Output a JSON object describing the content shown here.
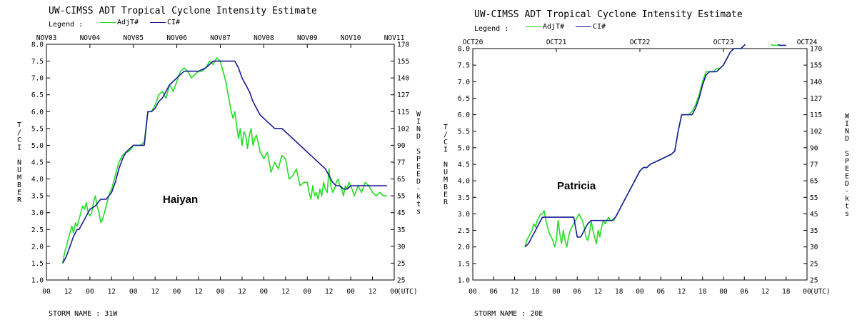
{
  "chart_data": [
    {
      "type": "line",
      "title": "UW-CIMSS ADT Tropical Cyclone Intensity Estimate",
      "legend_label": "Legend :",
      "legend": [
        {
          "name": "AdjT#",
          "color": "#22dd22"
        },
        {
          "name": "CI#",
          "color": "#1a1a9a"
        }
      ],
      "ylabel": "T/CI NUMBER",
      "y2label": "WIND SPEED-kts",
      "xlabel": "(UTC)",
      "storm_name": "STORM NAME : 31W",
      "annotation": "Haiyan",
      "x_top_labels": [
        "NOV03",
        "NOV04",
        "NOV05",
        "NOV06",
        "NOV07",
        "NOV08",
        "NOV09",
        "NOV10",
        "NOV11"
      ],
      "x_bottom_labels": [
        "00",
        "12",
        "00",
        "12",
        "00",
        "12",
        "00",
        "12",
        "00",
        "12",
        "00",
        "12",
        "00",
        "12",
        "00",
        "12",
        "00"
      ],
      "xlim_hours": [
        0,
        192
      ],
      "ylim": [
        1.0,
        8.0
      ],
      "y_ticks": [
        "1.0",
        "1.5",
        "2.0",
        "2.5",
        "3.0",
        "3.5",
        "4.0",
        "4.5",
        "5.0",
        "5.5",
        "6.0",
        "6.5",
        "7.0",
        "7.5",
        "8.0"
      ],
      "y2_ticks": [
        "25",
        "25",
        "30",
        "35",
        "45",
        "55",
        "65",
        "77",
        "90",
        "102",
        "115",
        "127",
        "140",
        "155",
        "170"
      ],
      "series": [
        {
          "name": "AdjT#",
          "color": "#22dd22",
          "x": [
            9,
            10,
            11,
            12,
            13,
            14,
            15,
            16,
            17,
            18,
            19,
            20,
            21,
            22,
            23,
            24,
            25,
            26,
            27,
            28,
            29,
            30,
            31,
            32,
            33,
            34,
            35,
            36,
            37,
            38,
            39,
            40,
            41,
            42,
            43,
            44,
            45,
            46,
            47,
            48,
            50,
            52,
            54,
            56,
            58,
            60,
            62,
            64,
            66,
            68,
            70,
            72,
            74,
            76,
            78,
            80,
            82,
            84,
            86,
            88,
            90,
            92,
            94,
            96,
            97,
            98,
            99,
            100,
            101,
            102,
            103,
            104,
            105,
            106,
            107,
            108,
            109,
            110,
            111,
            112,
            113,
            114,
            115,
            116,
            118,
            120,
            122,
            124,
            126,
            128,
            130,
            132,
            134,
            136,
            138,
            140,
            142,
            144,
            145,
            146,
            147,
            148,
            149,
            150,
            151,
            152,
            153,
            154,
            155,
            156,
            157,
            158,
            159,
            160,
            161,
            162,
            163,
            164,
            165,
            166,
            167,
            168,
            170,
            172,
            174,
            176,
            178,
            180,
            182,
            184,
            186,
            188
          ],
          "values": [
            1.5,
            1.8,
            2.0,
            2.2,
            2.4,
            2.6,
            2.4,
            2.7,
            2.6,
            2.8,
            3.0,
            3.2,
            3.1,
            3.3,
            3.0,
            2.9,
            3.0,
            3.3,
            3.5,
            3.2,
            3.0,
            2.7,
            2.8,
            3.0,
            3.2,
            3.4,
            3.6,
            3.7,
            3.9,
            4.1,
            4.3,
            4.5,
            4.6,
            4.7,
            4.75,
            4.8,
            4.8,
            4.85,
            4.9,
            5.0,
            5.0,
            5.0,
            5.1,
            6.0,
            6.0,
            6.2,
            6.5,
            6.6,
            6.4,
            6.8,
            6.6,
            6.9,
            7.2,
            7.3,
            7.2,
            7.0,
            7.1,
            7.2,
            7.2,
            7.3,
            7.5,
            7.4,
            7.6,
            7.5,
            7.3,
            7.1,
            6.9,
            6.6,
            6.3,
            6.0,
            5.8,
            6.0,
            5.6,
            5.2,
            5.5,
            5.0,
            5.4,
            5.3,
            4.9,
            5.3,
            5.5,
            5.0,
            5.2,
            5.3,
            4.8,
            4.6,
            4.8,
            4.2,
            4.5,
            4.3,
            4.7,
            4.6,
            4.0,
            4.1,
            4.3,
            3.8,
            3.9,
            3.9,
            3.6,
            3.4,
            3.8,
            3.5,
            3.6,
            3.4,
            3.7,
            3.5,
            3.9,
            3.7,
            3.6,
            4.3,
            3.8,
            3.6,
            3.7,
            3.9,
            4.0,
            3.8,
            3.7,
            3.5,
            3.8,
            3.7,
            3.9,
            3.8,
            3.5,
            3.8,
            3.6,
            3.9,
            3.8,
            3.6,
            3.5,
            3.6,
            3.5,
            3.5
          ]
        },
        {
          "name": "CI#",
          "color": "#1a1a9a",
          "x": [
            9,
            11,
            13,
            15,
            17,
            18,
            21,
            24,
            27,
            30,
            33,
            36,
            38,
            40,
            42,
            44,
            46,
            48,
            50,
            52,
            54,
            56,
            58,
            60,
            62,
            64,
            66,
            68,
            70,
            72,
            74,
            76,
            78,
            80,
            84,
            88,
            92,
            96,
            100,
            104,
            106,
            108,
            110,
            112,
            114,
            116,
            118,
            120,
            122,
            124,
            126,
            128,
            130,
            132,
            134,
            136,
            138,
            140,
            142,
            144,
            146,
            148,
            150,
            152,
            154,
            156,
            158,
            160,
            162,
            164,
            166,
            168,
            170,
            172,
            174,
            176,
            178,
            180,
            182,
            184,
            186,
            188
          ],
          "values": [
            1.5,
            1.7,
            2.0,
            2.3,
            2.5,
            2.5,
            2.8,
            3.1,
            3.2,
            3.4,
            3.4,
            3.6,
            3.9,
            4.3,
            4.6,
            4.8,
            4.9,
            5.0,
            5.0,
            5.0,
            5.0,
            6.0,
            6.0,
            6.1,
            6.3,
            6.4,
            6.6,
            6.8,
            6.9,
            7.0,
            7.1,
            7.2,
            7.2,
            7.2,
            7.2,
            7.3,
            7.5,
            7.5,
            7.5,
            7.5,
            7.3,
            7.0,
            6.8,
            6.6,
            6.3,
            6.1,
            5.9,
            5.8,
            5.7,
            5.6,
            5.5,
            5.5,
            5.5,
            5.4,
            5.3,
            5.2,
            5.1,
            5.0,
            4.9,
            4.8,
            4.7,
            4.6,
            4.5,
            4.4,
            4.3,
            4.1,
            3.9,
            3.8,
            3.8,
            3.7,
            3.7,
            3.8,
            3.8,
            3.8,
            3.8,
            3.8,
            3.8,
            3.8,
            3.8,
            3.8,
            3.8,
            3.8
          ]
        }
      ]
    },
    {
      "type": "line",
      "title": "UW-CIMSS ADT Tropical Cyclone Intensity Estimate",
      "legend_label": "Legend :",
      "legend": [
        {
          "name": "AdjT#",
          "color": "#22dd22"
        },
        {
          "name": "CI#",
          "color": "#1a1a9a"
        }
      ],
      "ylabel": "T/CI NUMBER",
      "y2label": "WIND SPEED-kts",
      "xlabel": "(UTC)",
      "storm_name": "STORM NAME : 20E",
      "annotation": "Patricia",
      "x_top_labels": [
        "OCT20",
        "OCT21",
        "OCT22",
        "OCT23",
        "OCT24"
      ],
      "x_bottom_labels": [
        "00",
        "06",
        "12",
        "18",
        "00",
        "06",
        "12",
        "18",
        "00",
        "06",
        "12",
        "18",
        "00",
        "06",
        "12",
        "18",
        "00"
      ],
      "xlim_hours": [
        0,
        96
      ],
      "ylim": [
        1.0,
        8.0
      ],
      "y_ticks": [
        "1.0",
        "1.5",
        "2.0",
        "2.5",
        "3.0",
        "3.5",
        "4.0",
        "4.5",
        "5.0",
        "5.5",
        "6.0",
        "6.5",
        "7.0",
        "7.5",
        "8.0"
      ],
      "y2_ticks": [
        "25",
        "25",
        "30",
        "35",
        "45",
        "55",
        "65",
        "77",
        "90",
        "102",
        "115",
        "127",
        "140",
        "155",
        "170"
      ],
      "series": [
        {
          "name": "AdjT#",
          "color": "#22dd22",
          "x": [
            15,
            15.5,
            16,
            16.5,
            17,
            17.5,
            18,
            18.5,
            19,
            19.5,
            20,
            20.5,
            21,
            21.5,
            22,
            22.5,
            23,
            23.5,
            24,
            24.5,
            25,
            25.5,
            26,
            26.5,
            27,
            27.5,
            28,
            28.5,
            29,
            29.5,
            30,
            30.5,
            31,
            31.5,
            32,
            32.5,
            33,
            33.5,
            34,
            34.5,
            35,
            35.5,
            36,
            36.5,
            37,
            37.5,
            38,
            38.5,
            39,
            39.5,
            40,
            40.5,
            41,
            42,
            43,
            44,
            45,
            46,
            47,
            48,
            49,
            50,
            51,
            52,
            53,
            54,
            55,
            56,
            57,
            58,
            59,
            60,
            61,
            62,
            63,
            64,
            65,
            66,
            67,
            68,
            69,
            70,
            71,
            72,
            73,
            74,
            75,
            76,
            77,
            78,
            79,
            80,
            81,
            82,
            83,
            84,
            85,
            86,
            87,
            88,
            88.5,
            89,
            89.5,
            90
          ],
          "values": [
            2.0,
            2.2,
            2.3,
            2.4,
            2.5,
            2.7,
            2.6,
            2.8,
            2.9,
            3.0,
            3.0,
            3.1,
            2.8,
            2.6,
            2.4,
            2.3,
            2.2,
            2.0,
            2.2,
            2.8,
            2.4,
            2.1,
            2.5,
            2.2,
            2.0,
            2.3,
            2.5,
            2.6,
            2.7,
            2.8,
            2.9,
            3.0,
            2.9,
            2.8,
            2.6,
            2.3,
            2.2,
            2.4,
            2.8,
            2.5,
            2.3,
            2.1,
            2.5,
            2.3,
            2.6,
            2.8,
            2.7,
            2.8,
            2.9,
            2.8,
            2.8,
            2.8,
            2.9,
            3.1,
            3.3,
            3.5,
            3.7,
            3.9,
            4.1,
            4.3,
            4.4,
            4.4,
            4.5,
            4.55,
            4.6,
            4.65,
            4.7,
            4.75,
            4.8,
            4.9,
            5.5,
            6.0,
            6.0,
            6.0,
            6.1,
            6.3,
            6.6,
            7.0,
            7.3,
            7.3,
            7.3,
            7.4,
            7.4,
            7.5,
            7.7,
            7.9,
            8.0,
            8.0,
            8.0,
            8.1,
            8.3,
            8.4,
            8.5,
            8.5,
            8.4,
            8.3,
            8.2,
            8.1,
            8.1,
            8.1,
            8.1,
            8.1,
            8.1,
            8.1
          ]
        },
        {
          "name": "CI#",
          "color": "#1a1a9a",
          "x": [
            15,
            16,
            17,
            18,
            19,
            20,
            21,
            22,
            23,
            24,
            25,
            26,
            27,
            28,
            29,
            30,
            31,
            32,
            33,
            34,
            35,
            36,
            37,
            38,
            39,
            40,
            41,
            42,
            43,
            44,
            45,
            46,
            47,
            48,
            49,
            50,
            51,
            52,
            53,
            54,
            55,
            56,
            57,
            58,
            59,
            60,
            61,
            62,
            63,
            64,
            65,
            66,
            67,
            68,
            69,
            70,
            71,
            72,
            73,
            74,
            75,
            76,
            77,
            78,
            79,
            80,
            81,
            82,
            83,
            84,
            85,
            86,
            87,
            88,
            89,
            90
          ],
          "values": [
            2.0,
            2.1,
            2.3,
            2.5,
            2.7,
            2.9,
            2.9,
            2.9,
            2.9,
            2.9,
            2.9,
            2.9,
            2.9,
            2.9,
            2.9,
            2.3,
            2.3,
            2.5,
            2.7,
            2.8,
            2.8,
            2.8,
            2.8,
            2.8,
            2.8,
            2.8,
            2.9,
            3.1,
            3.3,
            3.5,
            3.7,
            3.9,
            4.1,
            4.3,
            4.4,
            4.4,
            4.5,
            4.55,
            4.6,
            4.65,
            4.7,
            4.75,
            4.8,
            4.9,
            5.5,
            6.0,
            6.0,
            6.0,
            6.0,
            6.2,
            6.5,
            6.9,
            7.2,
            7.3,
            7.3,
            7.3,
            7.4,
            7.5,
            7.7,
            7.9,
            8.0,
            8.0,
            8.0,
            8.1,
            8.3,
            8.5,
            8.5,
            8.5,
            8.5,
            8.5,
            8.5,
            8.5,
            8.5,
            8.1,
            8.1,
            8.1
          ]
        }
      ]
    }
  ]
}
